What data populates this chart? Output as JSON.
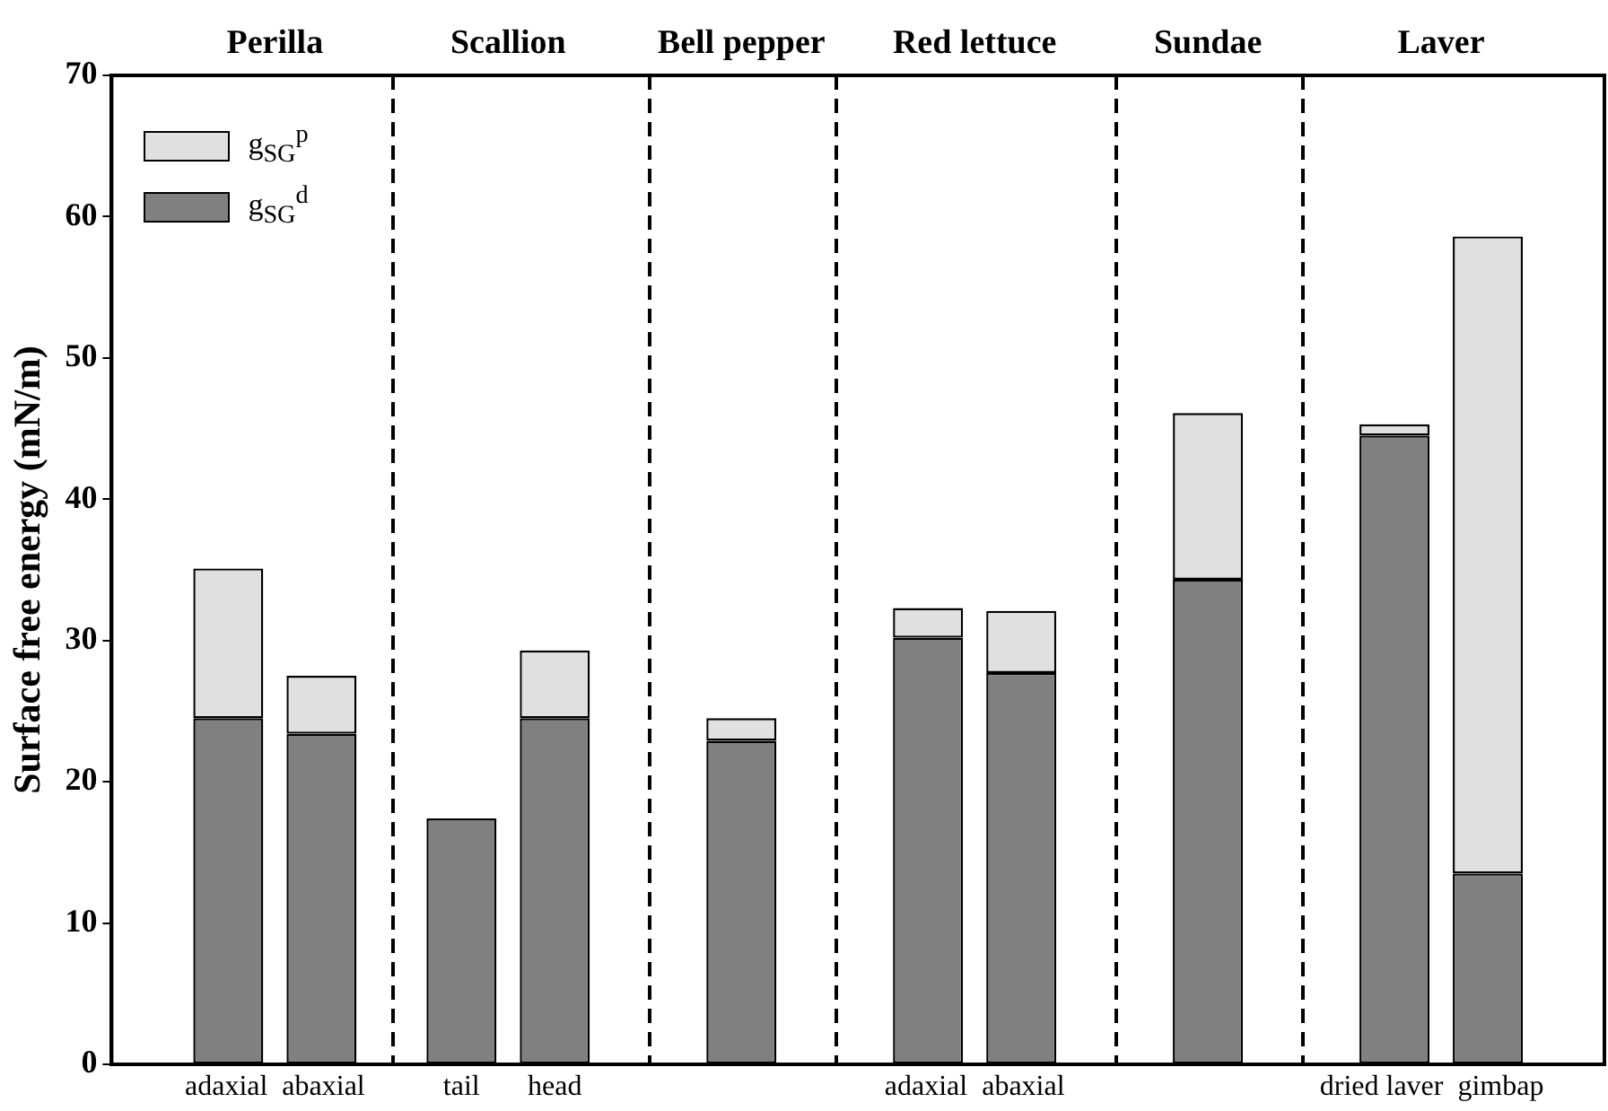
{
  "chart_data": {
    "type": "bar",
    "stacked": true,
    "categories": [
      null,
      null,
      "adaxial",
      null,
      "abaxial",
      null,
      null,
      "tail",
      null,
      "head",
      null,
      null,
      null,
      null,
      null,
      null,
      null,
      "adaxial",
      null,
      "abaxial",
      null,
      null,
      null,
      null,
      null,
      null,
      null,
      "dried laver",
      null,
      "gimbap",
      null,
      null
    ],
    "series": [
      {
        "name": "g$_{SG}$$^{d}$",
        "color": "#808080",
        "values": [
          null,
          null,
          24.5,
          null,
          23.4,
          null,
          null,
          17.4,
          null,
          24.5,
          null,
          null,
          null,
          22.9,
          null,
          null,
          null,
          30.2,
          null,
          27.7,
          null,
          null,
          null,
          34.3,
          null,
          null,
          null,
          44.5,
          null,
          13.5,
          null,
          null
        ]
      },
      {
        "name": "g$_{SG}$$^{p}$",
        "color": "#e0e0e0",
        "values": [
          null,
          null,
          10.6,
          null,
          4.1,
          null,
          null,
          null,
          null,
          4.8,
          null,
          null,
          null,
          1.6,
          null,
          null,
          null,
          2.1,
          null,
          4.4,
          null,
          null,
          null,
          11.8,
          null,
          null,
          null,
          0.8,
          null,
          45.1,
          null,
          null
        ]
      }
    ],
    "ylabel": "Surface free energy (mN/m)",
    "ylim": [
      0,
      70
    ],
    "yticks": [
      0,
      10,
      20,
      30,
      40,
      50,
      60,
      70
    ],
    "annotations": [
      "Perilla",
      "Scallion",
      "Bell pepper",
      "Red lettuce",
      "Sundae",
      "Laver"
    ],
    "legend": "top left",
    "grid": false
  }
}
